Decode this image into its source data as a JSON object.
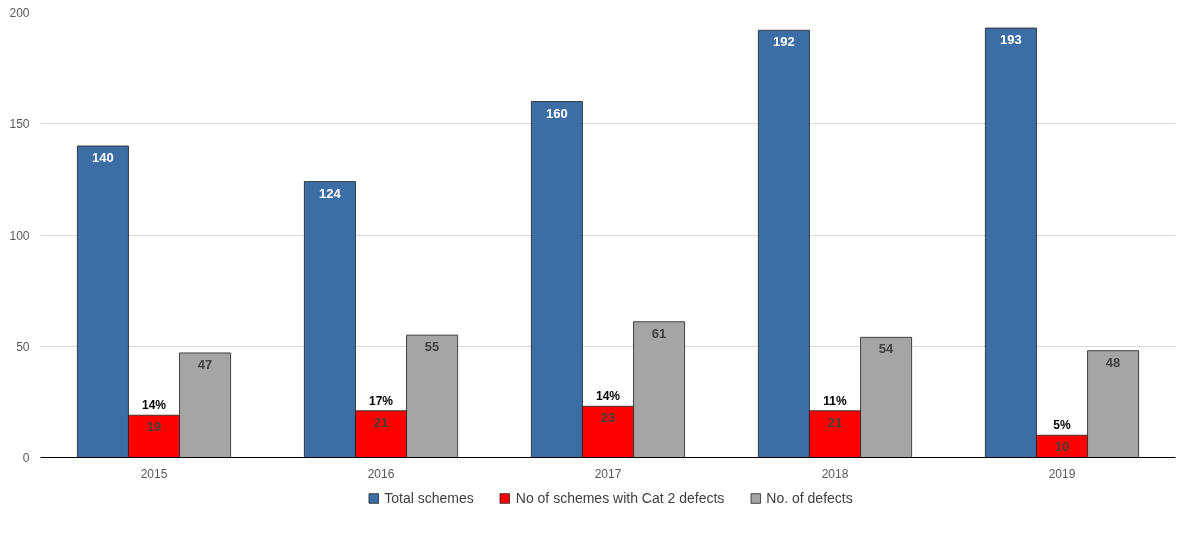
{
  "chart_data": {
    "type": "bar",
    "categories": [
      "2015",
      "2016",
      "2017",
      "2018",
      "2019"
    ],
    "series": [
      {
        "name": "Total schemes",
        "color": "#3c6ea5",
        "values": [
          140,
          124,
          160,
          192,
          193
        ]
      },
      {
        "name": "No of schemes with Cat 2 defects",
        "color": "#ff0000",
        "values": [
          19,
          21,
          23,
          21,
          10
        ]
      },
      {
        "name": "No. of defects",
        "color": "#a5a5a5",
        "values": [
          47,
          55,
          61,
          54,
          48
        ]
      }
    ],
    "ylim": [
      0,
      200
    ],
    "yticks": [
      0,
      50,
      100,
      150,
      200
    ],
    "grid": "y",
    "legend": "bottom",
    "data_labels": true,
    "annotations": [
      {
        "text": "14%",
        "x": "2015",
        "y": 19
      },
      {
        "text": "17%",
        "x": "2016",
        "y": 21
      },
      {
        "text": "14%",
        "x": "2017",
        "y": 23
      },
      {
        "text": "11%",
        "x": "2018",
        "y": 21
      },
      {
        "text": "5%",
        "x": "2019",
        "y": 10
      }
    ]
  }
}
